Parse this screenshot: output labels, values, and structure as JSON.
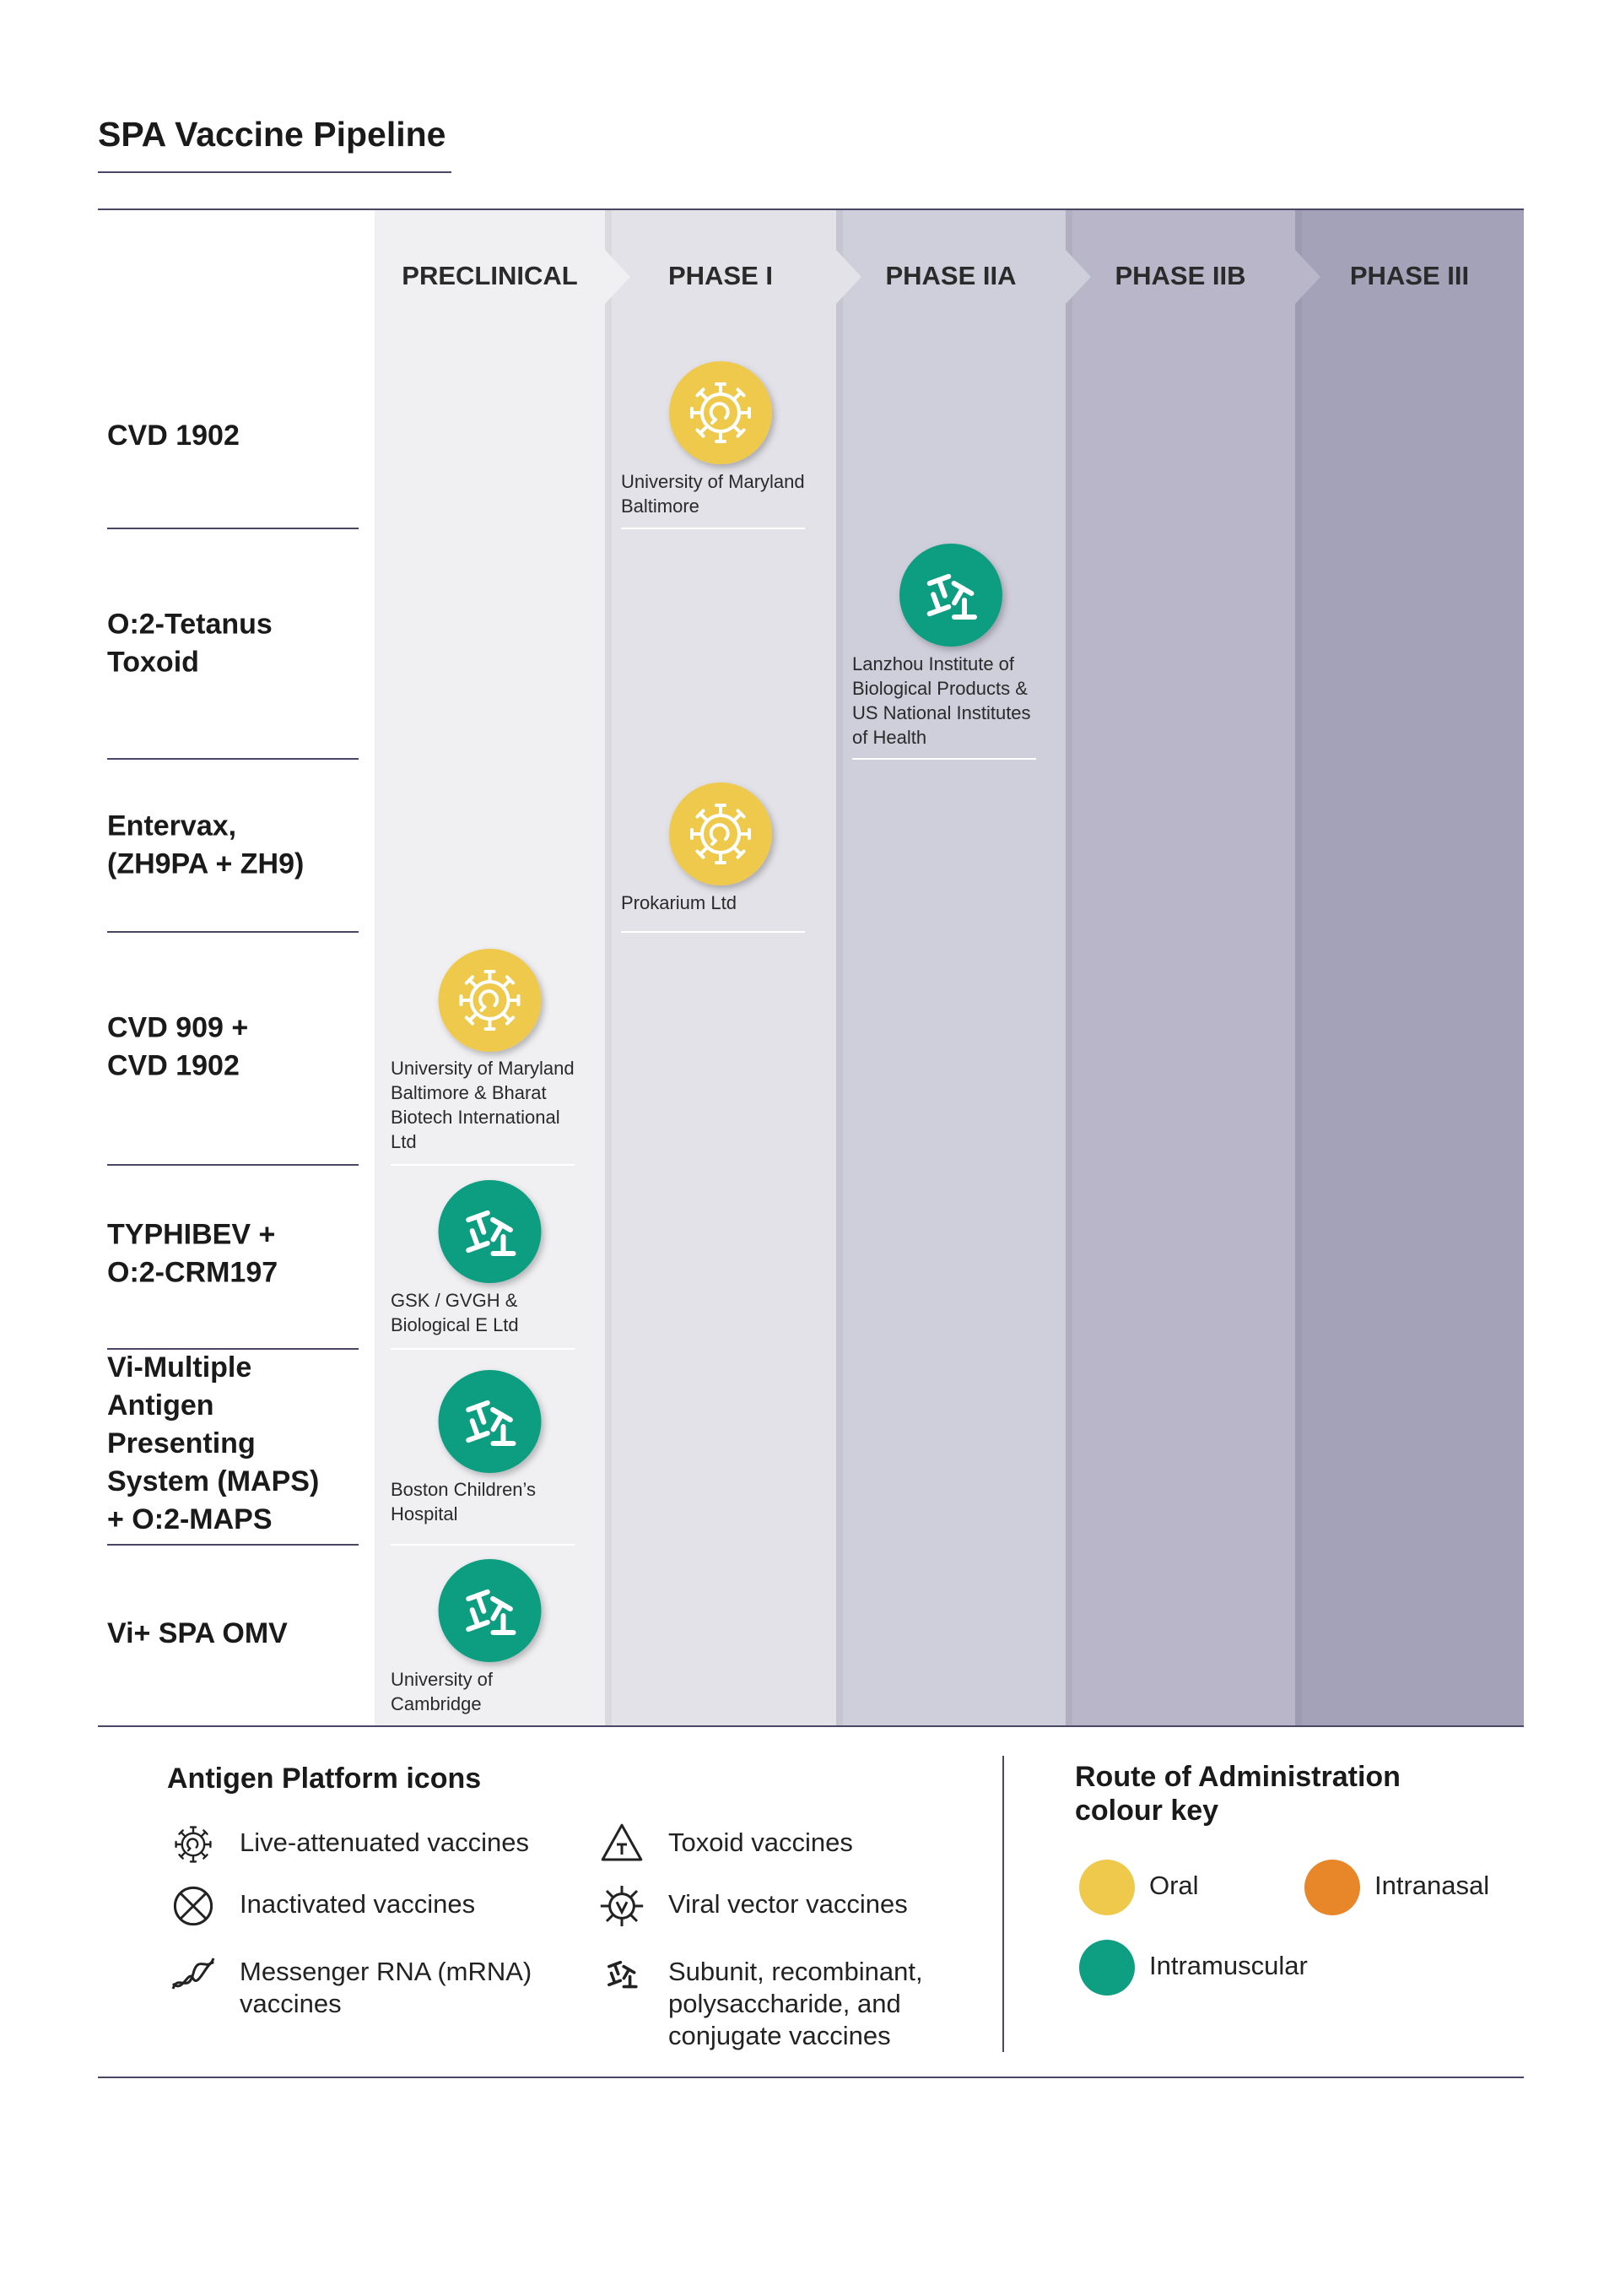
{
  "header": {
    "title": "SPA Vaccine Pipeline"
  },
  "phases": [
    "PRECLINICAL",
    "PHASE I",
    "PHASE IIA",
    "PHASE IIB",
    "PHASE III"
  ],
  "rows": [
    {
      "label": [
        "CVD 1902"
      ],
      "organisation": [
        "University of Maryland",
        "Baltimore"
      ]
    },
    {
      "label": [
        "O:2-Tetanus",
        "Toxoid"
      ],
      "organisation": [
        "Lanzhou Institute of",
        "Biological Products &",
        "US National Institutes",
        "of Health"
      ]
    },
    {
      "label": [
        "Entervax,",
        "(ZH9PA + ZH9)"
      ],
      "organisation": [
        "Prokarium Ltd"
      ]
    },
    {
      "label": [
        "CVD 909 +",
        "CVD 1902"
      ],
      "organisation": [
        "University of Maryland",
        "Baltimore & Bharat",
        "Biotech International",
        "Ltd"
      ]
    },
    {
      "label": [
        "TYPHIBEV +",
        "O:2-CRM197"
      ],
      "organisation": [
        "GSK / GVGH &",
        "Biological E Ltd"
      ]
    },
    {
      "label": [
        "Vi-Multiple",
        "Antigen",
        "Presenting",
        "System (MAPS)",
        "+ O:2-MAPS"
      ],
      "organisation": [
        "Boston Children’s",
        "Hospital"
      ]
    },
    {
      "label": [
        "Vi+ SPA OMV"
      ],
      "organisation": [
        "University of",
        "Cambridge"
      ]
    }
  ],
  "legend": {
    "title": "Antigen Platform icons",
    "items": [
      [
        "Live-attenuated vaccines"
      ],
      [
        "Inactivated vaccines"
      ],
      [
        "Messenger RNA (mRNA)",
        "vaccines"
      ],
      [
        "Toxoid vaccines"
      ],
      [
        "Viral vector vaccines"
      ],
      [
        "Subunit, recombinant,",
        "polysaccharide, and",
        "conjugate vaccines"
      ]
    ]
  },
  "route_key": {
    "title": [
      "Route of Administration",
      "colour key"
    ],
    "items": [
      "Oral",
      "Intranasal",
      "Intramuscular"
    ]
  }
}
